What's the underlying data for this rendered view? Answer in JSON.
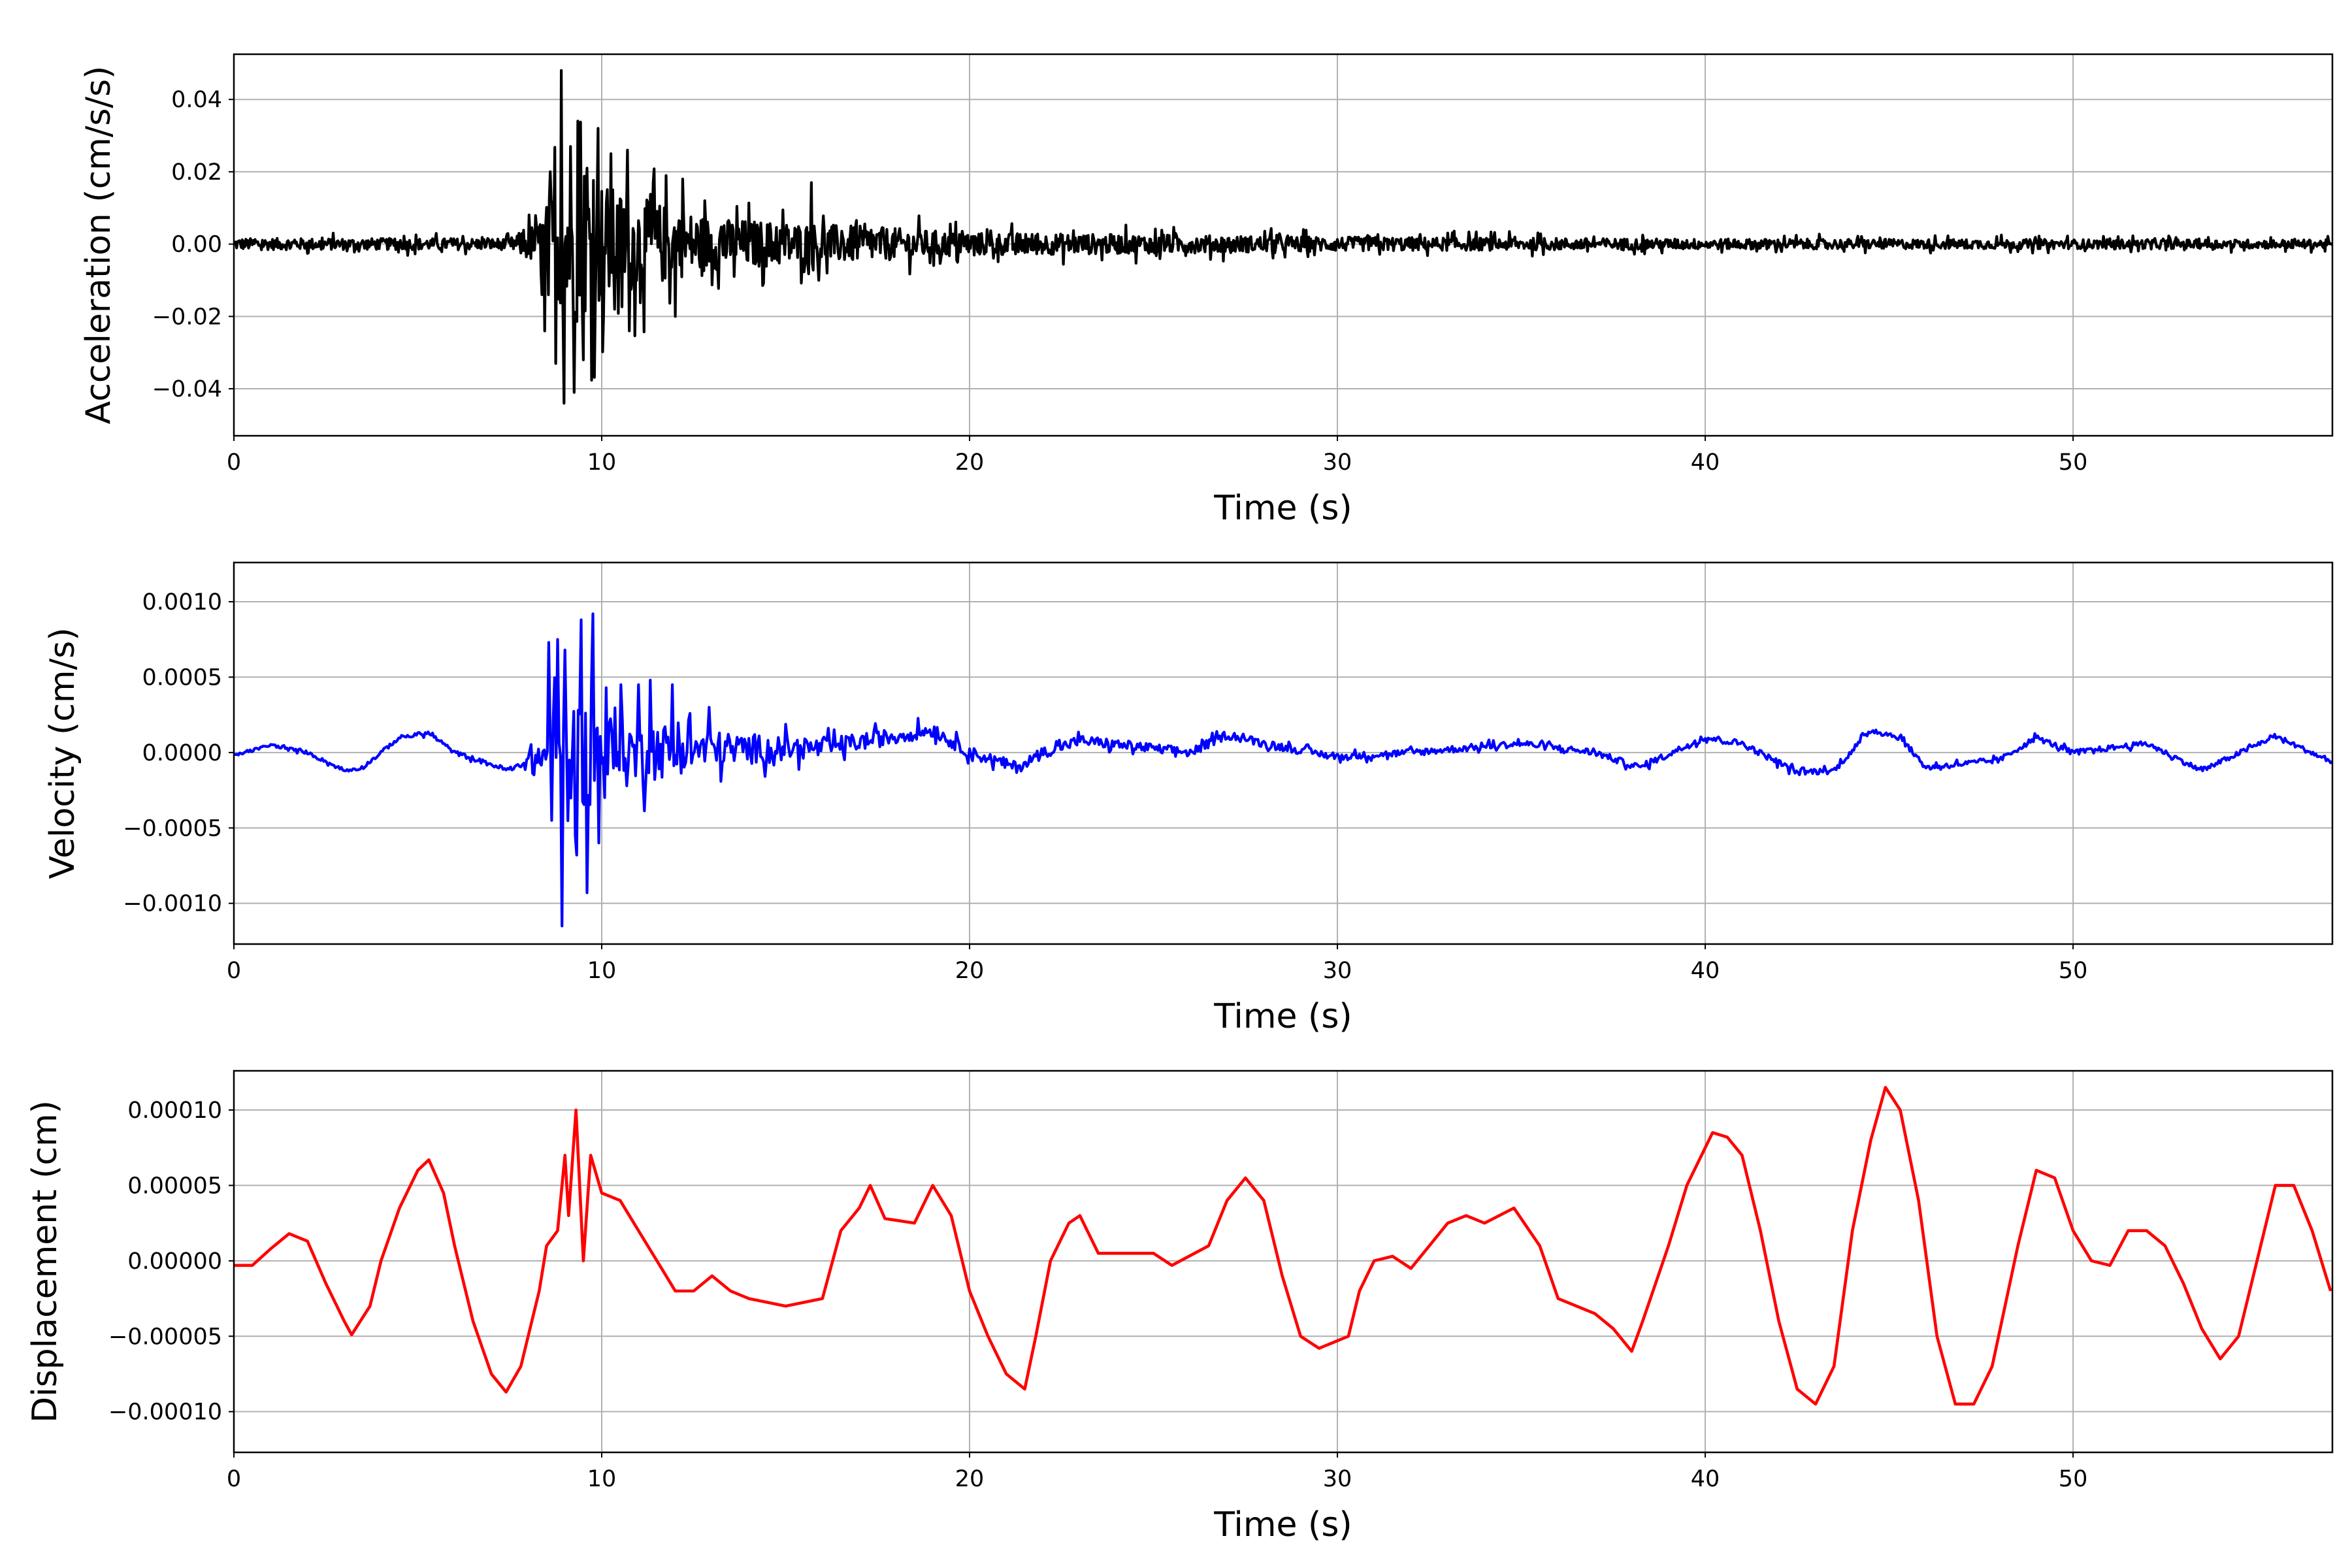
{
  "chart_data": [
    {
      "type": "line",
      "title": "",
      "xlabel": "Time (s)",
      "ylabel": "Acceleration (cm/s/s)",
      "xlim": [
        0,
        57.05
      ],
      "ylim": [
        -0.053,
        0.0525
      ],
      "xticks": [
        0,
        10,
        20,
        30,
        40,
        50
      ],
      "xtick_labels": [
        "0",
        "10",
        "20",
        "30",
        "40",
        "50"
      ],
      "yticks": [
        -0.04,
        -0.02,
        0.0,
        0.02,
        0.04
      ],
      "ytick_labels": [
        "−0.04",
        "−0.02",
        "0.00",
        "0.02",
        "0.04"
      ],
      "grid": true,
      "color": "#000000",
      "envelope": {
        "t": [
          0,
          7.5,
          8.3,
          9.0,
          10.5,
          13,
          16,
          20,
          30,
          40,
          57
        ],
        "amp": [
          0.002,
          0.002,
          0.008,
          0.03,
          0.018,
          0.009,
          0.007,
          0.004,
          0.0025,
          0.0018,
          0.0015
        ]
      },
      "peaks": {
        "t": [
          8.45,
          8.6,
          8.75,
          8.9,
          8.98,
          9.15,
          9.25,
          9.35,
          9.5,
          9.6,
          9.75,
          9.9,
          10.05,
          10.25,
          10.35,
          10.7,
          10.75,
          11.4,
          12.0,
          12.2,
          12.8,
          15.7,
          15.9
        ],
        "v": [
          -0.024,
          0.02,
          -0.033,
          0.048,
          -0.044,
          0.027,
          -0.041,
          0.034,
          -0.032,
          0.021,
          -0.031,
          0.032,
          -0.02,
          0.025,
          -0.018,
          0.026,
          -0.024,
          0.017,
          -0.02,
          0.018,
          0.012,
          0.017,
          -0.01
        ]
      }
    },
    {
      "type": "line",
      "title": "",
      "xlabel": "Time (s)",
      "ylabel": "Velocity (cm/s)",
      "xlim": [
        0,
        57.05
      ],
      "ylim": [
        -0.00127,
        0.00126
      ],
      "xticks": [
        0,
        10,
        20,
        30,
        40,
        50
      ],
      "xtick_labels": [
        "0",
        "10",
        "20",
        "30",
        "40",
        "50"
      ],
      "yticks": [
        -0.001,
        -0.0005,
        0.0,
        0.0005,
        0.001
      ],
      "ytick_labels": [
        "−0.0010",
        "−0.0005",
        "0.0000",
        "0.0005",
        "0.0010"
      ],
      "grid": true,
      "color": "#0000ff",
      "trend": {
        "t": [
          0,
          1,
          2,
          3,
          3.5,
          4.5,
          5.3,
          6,
          7.5,
          8,
          12,
          16,
          19,
          20,
          21.3,
          22,
          23,
          26,
          27,
          28,
          30,
          32,
          35,
          37,
          38.2,
          40,
          41,
          42.5,
          43.5,
          44.5,
          45.3,
          46,
          48,
          49,
          50,
          52,
          53.5,
          55.5,
          57
        ],
        "v": [
          -2e-05,
          5e-05,
          0.0,
          -0.00012,
          -0.0001,
          0.0001,
          0.00013,
          0.0,
          -0.00012,
          -5e-05,
          2e-05,
          3e-05,
          0.00015,
          0.0,
          -0.0001,
          0.0,
          8e-05,
          0.0,
          0.00012,
          6e-05,
          -3e-05,
          0.0,
          6e-05,
          0.0,
          -0.0001,
          0.0001,
          6e-05,
          -0.00013,
          -0.00012,
          0.00015,
          0.0001,
          -0.0001,
          -5e-05,
          0.0001,
          0.0,
          6e-05,
          -0.00012,
          0.00011,
          -6e-05
        ]
      },
      "envelope": {
        "t": [
          0,
          7.8,
          8.5,
          9.2,
          10.5,
          13,
          16,
          20,
          30,
          57
        ],
        "amp": [
          1e-05,
          2e-05,
          0.0003,
          0.0005,
          0.0003,
          0.00015,
          8e-05,
          5e-05,
          3e-05,
          2e-05
        ]
      },
      "peaks": {
        "t": [
          8.55,
          8.65,
          8.8,
          8.9,
          9.0,
          9.3,
          9.45,
          9.6,
          9.75,
          9.9,
          10.1,
          10.5,
          11.0,
          11.3,
          11.9,
          12.9
        ],
        "v": [
          0.00073,
          -0.00045,
          0.00075,
          -0.00115,
          0.00068,
          -0.00068,
          0.00088,
          -0.00093,
          0.00092,
          -0.0006,
          0.00043,
          0.00045,
          0.00045,
          0.00048,
          0.00045,
          0.0003
        ]
      }
    },
    {
      "type": "line",
      "title": "",
      "xlabel": "Time (s)",
      "ylabel": "Displacement (cm)",
      "xlim": [
        0,
        57.05
      ],
      "ylim": [
        -0.000127,
        0.000126
      ],
      "xticks": [
        0,
        10,
        20,
        30,
        40,
        50
      ],
      "xtick_labels": [
        "0",
        "10",
        "20",
        "30",
        "40",
        "50"
      ],
      "yticks": [
        -0.0001,
        -5e-05,
        0.0,
        5e-05,
        0.0001
      ],
      "ytick_labels": [
        "−0.00010",
        "−0.00005",
        "0.00000",
        "0.00005",
        "0.00010"
      ],
      "grid": true,
      "color": "#ff0000",
      "x": [
        0,
        0.5,
        1.0,
        1.5,
        2.0,
        2.5,
        3.0,
        3.2,
        3.7,
        4.0,
        4.5,
        5.0,
        5.3,
        5.7,
        6.0,
        6.5,
        7.0,
        7.4,
        7.8,
        8.0,
        8.3,
        8.5,
        8.8,
        9.0,
        9.1,
        9.3,
        9.5,
        9.7,
        10,
        10.5,
        11,
        11.5,
        12,
        12.5,
        13,
        13.5,
        14,
        15,
        16,
        16.5,
        17,
        17.3,
        17.7,
        18.5,
        19,
        19.5,
        20,
        20.5,
        21,
        21.5,
        21.8,
        22.2,
        22.7,
        23,
        23.5,
        24.5,
        25,
        25.5,
        26.5,
        27,
        27.5,
        28,
        28.5,
        29,
        29.5,
        30.3,
        30.6,
        31,
        31.5,
        32,
        32.5,
        33,
        33.5,
        34,
        34.8,
        35.5,
        36,
        37,
        37.5,
        38,
        38.3,
        39,
        39.5,
        40.2,
        40.6,
        41,
        41.5,
        42,
        42.5,
        43,
        43.5,
        44,
        44.5,
        44.9,
        45.3,
        45.8,
        46.3,
        46.8,
        47.3,
        47.8,
        48.5,
        49,
        49.5,
        50,
        50.5,
        51,
        51.5,
        52,
        52.5,
        53,
        53.5,
        54,
        54.5,
        55,
        55.5,
        56,
        56.5,
        57
      ],
      "y": [
        -3e-06,
        -3e-06,
        8e-06,
        1.8e-05,
        1.3e-05,
        -1.5e-05,
        -4e-05,
        -4.9e-05,
        -3e-05,
        0.0,
        3.5e-05,
        6e-05,
        6.7e-05,
        4.5e-05,
        1e-05,
        -4e-05,
        -7.5e-05,
        -8.7e-05,
        -7e-05,
        -5e-05,
        -2e-05,
        1e-05,
        2e-05,
        7e-05,
        3e-05,
        0.0001,
        0.0,
        7e-05,
        4.5e-05,
        4e-05,
        2e-05,
        0.0,
        -2e-05,
        -2e-05,
        -1e-05,
        -2e-05,
        -2.5e-05,
        -3e-05,
        -2.5e-05,
        2e-05,
        3.5e-05,
        5e-05,
        2.8e-05,
        2.5e-05,
        5e-05,
        3e-05,
        -2e-05,
        -5e-05,
        -7.5e-05,
        -8.5e-05,
        -5e-05,
        0.0,
        2.5e-05,
        3e-05,
        5e-06,
        5e-06,
        5e-06,
        -3e-06,
        1e-05,
        4e-05,
        5.5e-05,
        4e-05,
        -1e-05,
        -5e-05,
        -5.8e-05,
        -5e-05,
        -2e-05,
        0.0,
        3e-06,
        -5e-06,
        1e-05,
        2.5e-05,
        3e-05,
        2.5e-05,
        3.5e-05,
        1e-05,
        -2.5e-05,
        -3.5e-05,
        -4.5e-05,
        -6e-05,
        -4e-05,
        1e-05,
        5e-05,
        8.5e-05,
        8.2e-05,
        7e-05,
        2e-05,
        -4e-05,
        -8.5e-05,
        -9.5e-05,
        -7e-05,
        2e-05,
        8e-05,
        0.000115,
        0.0001,
        4e-05,
        -5e-05,
        -9.5e-05,
        -9.5e-05,
        -7e-05,
        1e-05,
        6e-05,
        5.5e-05,
        2e-05,
        0.0,
        -3e-06,
        2e-05,
        2e-05,
        1e-05,
        -1.5e-05,
        -4.5e-05,
        -6.5e-05,
        -5e-05,
        0.0,
        5e-05,
        5e-05,
        2e-05,
        -2e-05
      ]
    }
  ]
}
